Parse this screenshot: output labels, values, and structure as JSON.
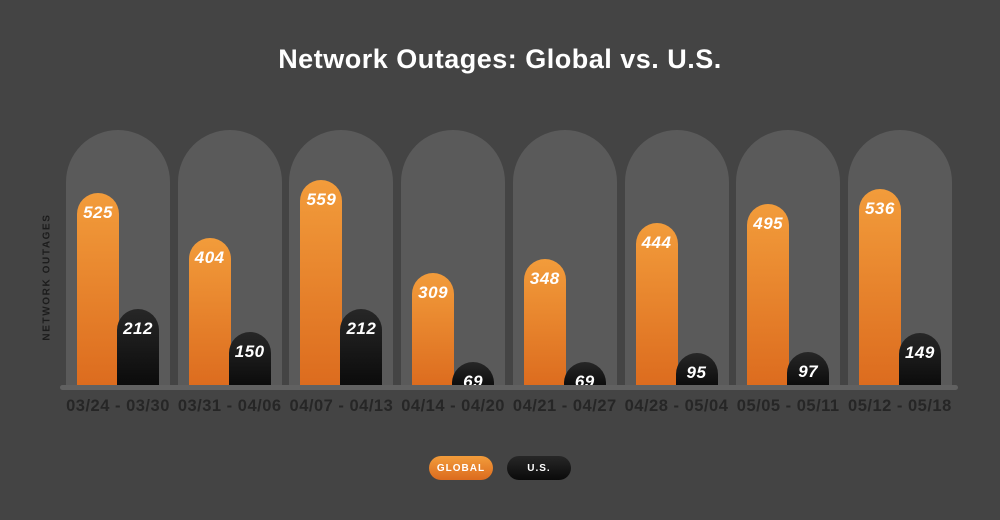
{
  "title": "Network Outages: Global vs. U.S.",
  "chart_data": {
    "type": "bar",
    "title": "Network Outages: Global vs. U.S.",
    "xlabel": "",
    "ylabel": "NETWORK OUTAGES",
    "categories": [
      "03/24 - 03/30",
      "03/31 - 04/06",
      "04/07 - 04/13",
      "04/14 - 04/20",
      "04/21 - 04/27",
      "04/28 - 05/04",
      "05/05 - 05/11",
      "05/12 - 05/18"
    ],
    "series": [
      {
        "name": "GLOBAL",
        "values": [
          525,
          404,
          559,
          309,
          348,
          444,
          495,
          536
        ]
      },
      {
        "name": "U.S.",
        "values": [
          212,
          150,
          212,
          69,
          69,
          95,
          97,
          149
        ]
      }
    ],
    "ylim": [
      0,
      600
    ],
    "grid": false,
    "legend_position": "bottom",
    "data_labels": true
  },
  "legend": {
    "global_label": "GLOBAL",
    "us_label": "U.S."
  },
  "colors": {
    "background": "#444444",
    "track": "#5a5a5a",
    "baseline": "#616161",
    "orange_top": "#F29C3B",
    "orange_bottom": "#DC6B1E",
    "black_top": "#272727",
    "black_bottom": "#0a0a0a",
    "title_text": "#FFFFFF",
    "value_text": "#FFFFFF",
    "axis_text": "#262626",
    "y_axis_text": "#1C1C1C"
  }
}
